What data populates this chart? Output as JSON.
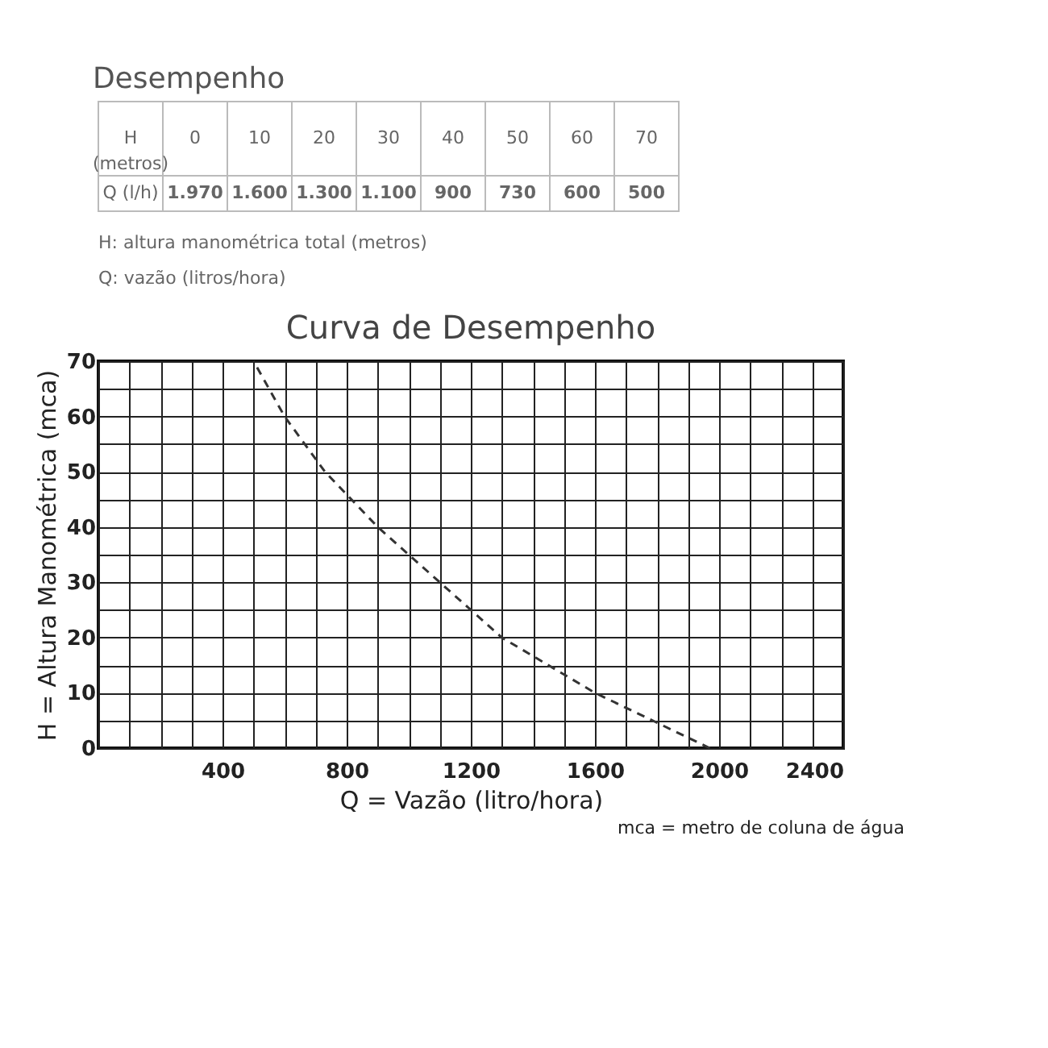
{
  "chart_data": [
    {
      "type": "heatmap",
      "title": "Desempenho",
      "xlabel": "H (metros)",
      "y_categories": [
        "Q (l/h)"
      ],
      "categories": [
        "0",
        "10",
        "20",
        "30",
        "40",
        "50",
        "60",
        "70"
      ],
      "cells": [
        [
          "1.970",
          "1.600",
          "1.300",
          "1.100",
          "900",
          "730",
          "600",
          "500"
        ]
      ],
      "annotations": [
        "H: altura manométrica total (metros)",
        "Q: vazão (litros/hora)"
      ]
    },
    {
      "type": "line",
      "title": "Curva de Desempenho",
      "xlabel": "Q = Vazão (litro/hora)",
      "ylabel": "H = Altura Manométrica (mca)",
      "x": [
        1970,
        1600,
        1300,
        1100,
        900,
        730,
        600,
        500
      ],
      "series": [
        {
          "color": "#333333",
          "values": [
            0,
            10,
            20,
            30,
            40,
            50,
            60,
            70
          ]
        }
      ],
      "line_style": "dashed",
      "marker": "none",
      "grid": true,
      "legend": false,
      "xlim": [
        0,
        2400
      ],
      "ylim": [
        0,
        70
      ],
      "xticks": [
        {
          "value": 0,
          "label": null
        },
        {
          "value": 100,
          "label": null
        },
        {
          "value": 200,
          "label": null
        },
        {
          "value": 300,
          "label": null
        },
        400,
        {
          "value": 500,
          "label": null
        },
        {
          "value": 600,
          "label": null
        },
        {
          "value": 700,
          "label": null
        },
        800,
        {
          "value": 900,
          "label": null
        },
        {
          "value": 1000,
          "label": null
        },
        {
          "value": 1100,
          "label": null
        },
        1200,
        {
          "value": 1300,
          "label": null
        },
        {
          "value": 1400,
          "label": null
        },
        {
          "value": 1500,
          "label": null
        },
        1600,
        {
          "value": 1700,
          "label": null
        },
        {
          "value": 1800,
          "label": null
        },
        {
          "value": 1900,
          "label": null
        },
        2000,
        {
          "value": 2100,
          "label": null
        },
        {
          "value": 2200,
          "label": null
        },
        {
          "value": 2300,
          "label": null
        },
        2400
      ],
      "yticks": [
        0,
        {
          "value": 5,
          "label": null
        },
        10,
        {
          "value": 15,
          "label": null
        },
        20,
        {
          "value": 25,
          "label": null
        },
        30,
        {
          "value": 35,
          "label": null
        },
        40,
        {
          "value": 45,
          "label": null
        },
        50,
        {
          "value": 55,
          "label": null
        },
        60,
        {
          "value": 65,
          "label": null
        },
        70
      ],
      "annotations": [
        "mca = metro de coluna de água"
      ]
    }
  ]
}
